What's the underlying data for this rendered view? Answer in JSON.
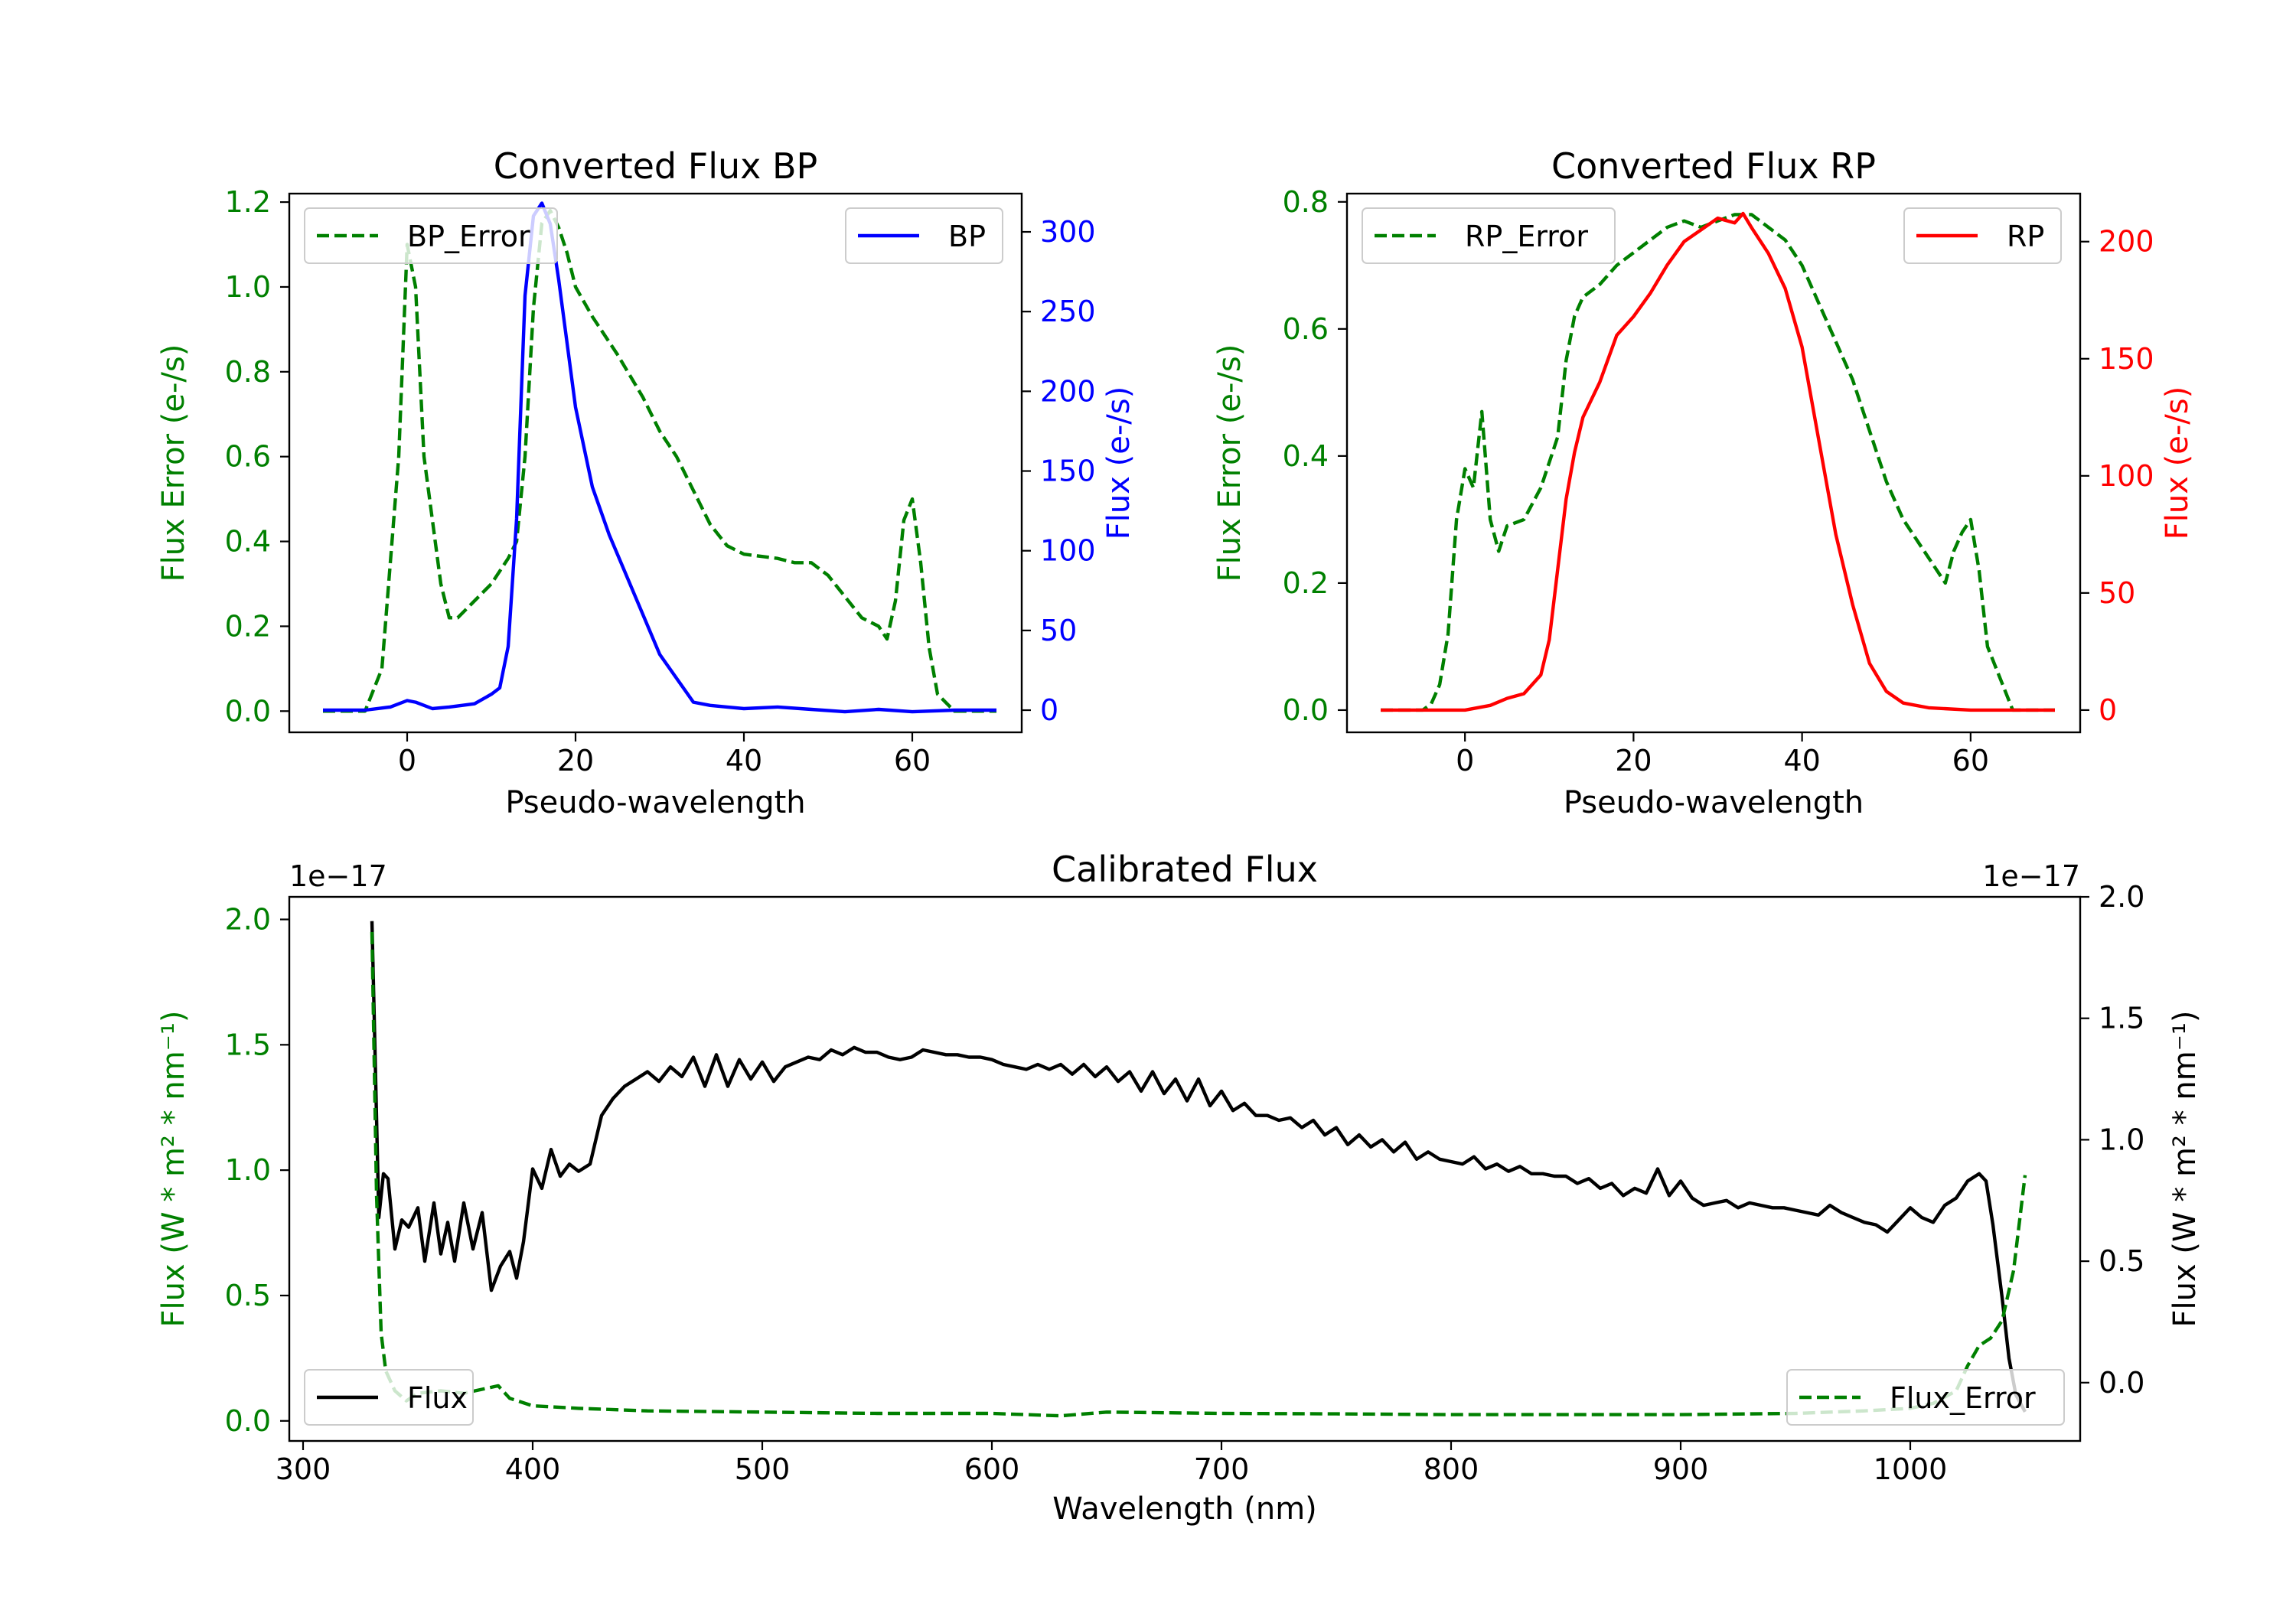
{
  "chart_data": [
    {
      "type": "line",
      "title": "Converted Flux BP",
      "xlabel": "Pseudo-wavelength",
      "ylabel_left": "Flux Error (e-/s)",
      "ylabel_right": "Flux (e-/s)",
      "xlim": [
        -14,
        73
      ],
      "ylim_left": [
        -0.05,
        1.22
      ],
      "ylim_right": [
        -13.9,
        324
      ],
      "xticks": [
        "0",
        "20",
        "40",
        "60"
      ],
      "yticks_left": [
        "0.0",
        "0.2",
        "0.4",
        "0.6",
        "0.8",
        "1.0",
        "1.2"
      ],
      "yticks_right": [
        "0",
        "50",
        "100",
        "150",
        "200",
        "250",
        "300"
      ],
      "colors": {
        "left": "#008000",
        "right": "#0000ff"
      },
      "series": [
        {
          "name": "BP_Error",
          "axis": "left",
          "style": "dashed",
          "color": "#008000",
          "x": [
            -10,
            -5,
            -3,
            -1,
            0,
            1,
            2,
            3,
            4,
            5,
            6,
            8,
            10,
            12,
            13,
            14,
            15,
            16,
            17,
            18,
            19,
            20,
            22,
            25,
            28,
            30,
            32,
            34,
            36,
            38,
            40,
            44,
            46,
            48,
            50,
            54,
            56,
            57,
            58,
            59,
            60,
            61,
            62,
            63,
            65,
            70
          ],
          "y": [
            0.0,
            0.0,
            0.1,
            0.6,
            1.1,
            1.0,
            0.6,
            0.45,
            0.3,
            0.22,
            0.22,
            0.26,
            0.3,
            0.36,
            0.4,
            0.6,
            0.95,
            1.15,
            1.18,
            1.14,
            1.08,
            1.0,
            0.93,
            0.84,
            0.74,
            0.66,
            0.6,
            0.52,
            0.44,
            0.39,
            0.37,
            0.36,
            0.35,
            0.35,
            0.32,
            0.22,
            0.2,
            0.17,
            0.26,
            0.45,
            0.5,
            0.35,
            0.15,
            0.04,
            0.0,
            0.0
          ]
        },
        {
          "name": "BP",
          "axis": "right",
          "style": "solid",
          "color": "#0000ff",
          "x": [
            -10,
            -5,
            -2,
            0,
            1,
            3,
            5,
            8,
            10,
            11,
            12,
            13,
            14,
            15,
            16,
            17,
            18,
            19,
            20,
            22,
            24,
            26,
            28,
            30,
            32,
            34,
            36,
            38,
            40,
            44,
            48,
            52,
            56,
            60,
            65,
            70
          ],
          "y": [
            0,
            0,
            2,
            6,
            5,
            1,
            2,
            4,
            10,
            14,
            40,
            120,
            260,
            310,
            318,
            305,
            270,
            230,
            190,
            140,
            110,
            85,
            60,
            35,
            20,
            5,
            3,
            2,
            1,
            2,
            0.5,
            -1,
            0.5,
            -1,
            0,
            0
          ]
        }
      ],
      "legend": [
        {
          "label": "BP_Error",
          "position": "upper-left"
        },
        {
          "label": "BP",
          "position": "upper-right"
        }
      ]
    },
    {
      "type": "line",
      "title": "Converted Flux RP",
      "xlabel": "Pseudo-wavelength",
      "ylabel_left": "Flux Error (e-/s)",
      "ylabel_right": "Flux (e-/s)",
      "xlim": [
        -14,
        73
      ],
      "ylim_left": [
        -0.035,
        0.813
      ],
      "ylim_right": [
        -9.5,
        220.5
      ],
      "xticks": [
        "0",
        "20",
        "40",
        "60"
      ],
      "yticks_left": [
        "0.0",
        "0.2",
        "0.4",
        "0.6",
        "0.8"
      ],
      "yticks_right": [
        "0",
        "50",
        "100",
        "150",
        "200"
      ],
      "colors": {
        "left": "#008000",
        "right": "#ff0000"
      },
      "series": [
        {
          "name": "RP_Error",
          "axis": "left",
          "style": "dashed",
          "color": "#008000",
          "x": [
            -10,
            -5,
            -4,
            -3,
            -2,
            -1,
            0,
            1,
            2,
            3,
            4,
            5,
            7,
            9,
            11,
            12,
            13,
            14,
            16,
            18,
            20,
            22,
            24,
            26,
            28,
            30,
            32,
            34,
            36,
            38,
            40,
            42,
            44,
            46,
            48,
            50,
            52,
            54,
            56,
            57,
            58,
            59,
            60,
            61,
            62,
            65,
            70
          ],
          "y": [
            0.0,
            0.0,
            0.01,
            0.04,
            0.12,
            0.3,
            0.38,
            0.35,
            0.47,
            0.3,
            0.25,
            0.29,
            0.3,
            0.35,
            0.43,
            0.55,
            0.62,
            0.65,
            0.67,
            0.7,
            0.72,
            0.74,
            0.76,
            0.77,
            0.76,
            0.77,
            0.78,
            0.78,
            0.76,
            0.74,
            0.7,
            0.64,
            0.58,
            0.52,
            0.44,
            0.36,
            0.3,
            0.26,
            0.22,
            0.2,
            0.25,
            0.28,
            0.3,
            0.22,
            0.1,
            0.0,
            0.0
          ]
        },
        {
          "name": "RP",
          "axis": "right",
          "style": "solid",
          "color": "#ff0000",
          "x": [
            -10,
            -5,
            0,
            3,
            5,
            7,
            9,
            10,
            11,
            12,
            13,
            14,
            16,
            18,
            20,
            22,
            24,
            26,
            28,
            30,
            32,
            33,
            34,
            36,
            38,
            40,
            42,
            44,
            46,
            48,
            50,
            52,
            55,
            60,
            70
          ],
          "y": [
            0,
            0,
            0,
            2,
            5,
            7,
            15,
            30,
            60,
            90,
            110,
            125,
            140,
            160,
            168,
            178,
            190,
            200,
            205,
            210,
            208,
            212,
            206,
            195,
            180,
            155,
            115,
            75,
            45,
            20,
            8,
            3,
            1,
            0,
            0
          ]
        }
      ],
      "legend": [
        {
          "label": "RP_Error",
          "position": "upper-left"
        },
        {
          "label": "RP",
          "position": "upper-right"
        }
      ]
    },
    {
      "type": "line",
      "title": "Calibrated Flux",
      "xlabel": "Wavelength (nm)",
      "ylabel_left": "Flux (W * m² * nm⁻¹)",
      "ylabel_right": "Flux (W * m² * nm⁻¹)",
      "offset_left": "1e−17",
      "offset_right": "1e−17",
      "xlim": [
        294,
        1074
      ],
      "ylim_left": [
        -0.08,
        2.09
      ],
      "ylim_right": [
        -0.24,
        2.0
      ],
      "xticks": [
        "300",
        "400",
        "500",
        "600",
        "700",
        "800",
        "900",
        "1000"
      ],
      "yticks_left": [
        "0.0",
        "0.5",
        "1.0",
        "1.5",
        "2.0"
      ],
      "yticks_right": [
        "0.0",
        "0.5",
        "1.0",
        "1.5",
        "2.0"
      ],
      "colors": {
        "left": "#008000",
        "right": "#000000"
      },
      "series": [
        {
          "name": "Flux",
          "axis": "right",
          "style": "solid",
          "color": "#000000",
          "x": [
            330,
            331,
            333,
            335,
            337,
            340,
            343,
            346,
            350,
            353,
            357,
            360,
            363,
            366,
            370,
            374,
            378,
            382,
            386,
            390,
            393,
            396,
            400,
            404,
            408,
            412,
            416,
            420,
            425,
            430,
            435,
            440,
            445,
            450,
            455,
            460,
            465,
            470,
            475,
            480,
            485,
            490,
            495,
            500,
            505,
            510,
            515,
            520,
            525,
            530,
            535,
            540,
            545,
            550,
            555,
            560,
            565,
            570,
            575,
            580,
            585,
            590,
            595,
            600,
            605,
            610,
            615,
            620,
            625,
            630,
            635,
            640,
            645,
            650,
            655,
            660,
            665,
            670,
            675,
            680,
            685,
            690,
            695,
            700,
            705,
            710,
            715,
            720,
            725,
            730,
            735,
            740,
            745,
            750,
            755,
            760,
            765,
            770,
            775,
            780,
            785,
            790,
            795,
            800,
            805,
            810,
            815,
            820,
            825,
            830,
            835,
            840,
            845,
            850,
            855,
            860,
            865,
            870,
            875,
            880,
            885,
            890,
            895,
            900,
            905,
            910,
            915,
            920,
            925,
            930,
            935,
            940,
            945,
            950,
            955,
            960,
            965,
            970,
            975,
            980,
            985,
            990,
            995,
            1000,
            1005,
            1010,
            1015,
            1020,
            1025,
            1030,
            1033,
            1036,
            1040,
            1043,
            1046,
            1050
          ],
          "y": [
            1.9,
            1.5,
            0.68,
            0.86,
            0.84,
            0.55,
            0.67,
            0.64,
            0.72,
            0.5,
            0.74,
            0.53,
            0.66,
            0.5,
            0.74,
            0.55,
            0.7,
            0.38,
            0.48,
            0.54,
            0.43,
            0.58,
            0.88,
            0.8,
            0.96,
            0.85,
            0.9,
            0.87,
            0.9,
            1.1,
            1.17,
            1.22,
            1.25,
            1.28,
            1.24,
            1.3,
            1.26,
            1.34,
            1.22,
            1.35,
            1.22,
            1.33,
            1.25,
            1.32,
            1.24,
            1.3,
            1.32,
            1.34,
            1.33,
            1.37,
            1.35,
            1.38,
            1.36,
            1.36,
            1.34,
            1.33,
            1.34,
            1.37,
            1.36,
            1.35,
            1.35,
            1.34,
            1.34,
            1.33,
            1.31,
            1.3,
            1.29,
            1.31,
            1.29,
            1.31,
            1.27,
            1.31,
            1.26,
            1.3,
            1.24,
            1.28,
            1.2,
            1.28,
            1.19,
            1.25,
            1.16,
            1.25,
            1.14,
            1.2,
            1.12,
            1.15,
            1.1,
            1.1,
            1.08,
            1.09,
            1.05,
            1.08,
            1.02,
            1.05,
            0.98,
            1.02,
            0.97,
            1.0,
            0.95,
            0.99,
            0.92,
            0.95,
            0.92,
            0.91,
            0.9,
            0.93,
            0.88,
            0.9,
            0.87,
            0.89,
            0.86,
            0.86,
            0.85,
            0.85,
            0.82,
            0.84,
            0.8,
            0.82,
            0.77,
            0.8,
            0.78,
            0.88,
            0.77,
            0.83,
            0.76,
            0.73,
            0.74,
            0.75,
            0.72,
            0.74,
            0.73,
            0.72,
            0.72,
            0.71,
            0.7,
            0.69,
            0.73,
            0.7,
            0.68,
            0.66,
            0.65,
            0.62,
            0.67,
            0.72,
            0.68,
            0.66,
            0.73,
            0.76,
            0.83,
            0.86,
            0.83,
            0.65,
            0.35,
            0.1,
            -0.05,
            -0.12
          ]
        },
        {
          "name": "Flux_Error",
          "axis": "left",
          "style": "dashed",
          "color": "#008000",
          "x": [
            330,
            332,
            334,
            336,
            340,
            345,
            350,
            360,
            370,
            380,
            385,
            390,
            400,
            420,
            450,
            500,
            550,
            600,
            630,
            650,
            700,
            750,
            800,
            850,
            900,
            950,
            980,
            1000,
            1010,
            1020,
            1025,
            1030,
            1035,
            1040,
            1045,
            1050
          ],
          "y": [
            1.95,
            0.9,
            0.35,
            0.2,
            0.12,
            0.08,
            0.11,
            0.12,
            0.11,
            0.13,
            0.14,
            0.09,
            0.06,
            0.05,
            0.04,
            0.035,
            0.03,
            0.03,
            0.02,
            0.035,
            0.03,
            0.028,
            0.025,
            0.025,
            0.025,
            0.03,
            0.04,
            0.05,
            0.07,
            0.12,
            0.22,
            0.3,
            0.33,
            0.4,
            0.6,
            0.98
          ]
        }
      ],
      "legend": [
        {
          "label": "Flux",
          "position": "lower-left"
        },
        {
          "label": "Flux_Error",
          "position": "lower-right"
        }
      ]
    }
  ]
}
